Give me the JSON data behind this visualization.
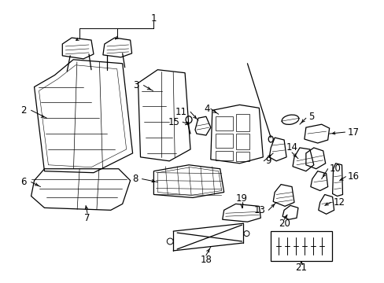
{
  "bg_color": "#ffffff",
  "line_color": "#000000",
  "fig_width": 4.89,
  "fig_height": 3.6,
  "dpi": 100,
  "font_size": 8.5
}
